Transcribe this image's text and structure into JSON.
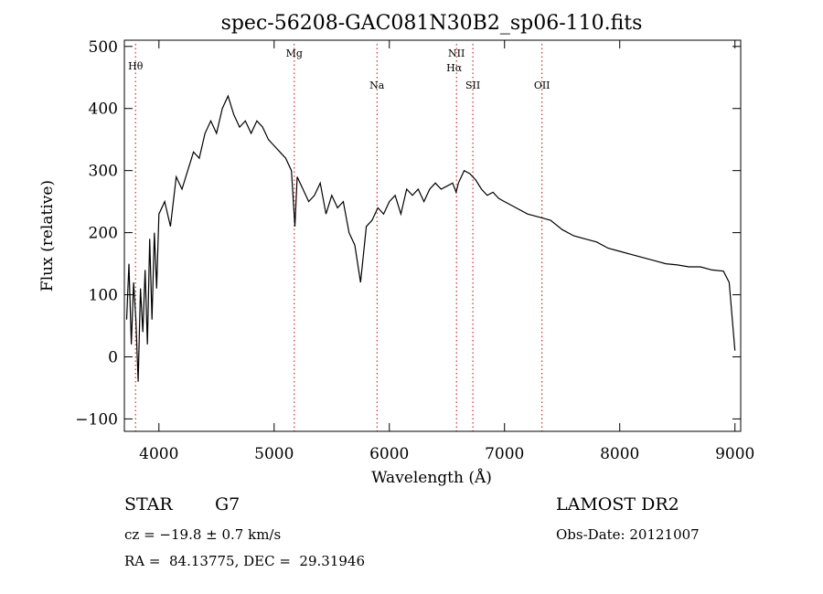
{
  "chart_data": {
    "type": "line",
    "title": "spec-56208-GAC081N30B2_sp06-110.fits",
    "xlabel": "Wavelength (Å)",
    "ylabel": "Flux (relative)",
    "xlim": [
      3700,
      9050
    ],
    "ylim": [
      -120,
      510
    ],
    "xticks": [
      4000,
      5000,
      6000,
      7000,
      8000,
      9000
    ],
    "yticks": [
      -100,
      0,
      100,
      200,
      300,
      400,
      500
    ],
    "grid": false,
    "line_color": "#000000",
    "marker_color": "#cc0000",
    "spectral_lines": [
      {
        "label": "Hθ",
        "wavelength": 3797
      },
      {
        "label": "Mg",
        "wavelength": 5175
      },
      {
        "label": "Na",
        "wavelength": 5893
      },
      {
        "label": "NII",
        "wavelength": 6583
      },
      {
        "label": "Hα",
        "wavelength": 6563
      },
      {
        "label": "SII",
        "wavelength": 6725
      },
      {
        "label": "OII",
        "wavelength": 7325
      }
    ],
    "series": [
      {
        "x": [
          3720,
          3740,
          3760,
          3780,
          3800,
          3820,
          3840,
          3860,
          3880,
          3900,
          3920,
          3940,
          3960,
          3980,
          4000,
          4050,
          4100,
          4150,
          4200,
          4250,
          4300,
          4350,
          4400,
          4450,
          4500,
          4550,
          4600,
          4650,
          4700,
          4750,
          4800,
          4850,
          4900,
          4950,
          5000,
          5050,
          5100,
          5150,
          5180,
          5200,
          5250,
          5300,
          5350,
          5400,
          5450,
          5500,
          5550,
          5600,
          5650,
          5700,
          5750,
          5800,
          5850,
          5900,
          5950,
          6000,
          6050,
          6100,
          6150,
          6200,
          6250,
          6300,
          6350,
          6400,
          6450,
          6500,
          6550,
          6580,
          6600,
          6650,
          6700,
          6750,
          6800,
          6850,
          6900,
          6950,
          7000,
          7100,
          7200,
          7300,
          7400,
          7500,
          7600,
          7700,
          7800,
          7900,
          8000,
          8100,
          8200,
          8300,
          8400,
          8500,
          8600,
          8700,
          8800,
          8900,
          8950,
          9000
        ],
        "y": [
          60,
          150,
          20,
          120,
          60,
          -40,
          110,
          40,
          140,
          20,
          190,
          60,
          200,
          110,
          230,
          250,
          210,
          290,
          270,
          300,
          330,
          320,
          360,
          380,
          360,
          400,
          420,
          390,
          370,
          380,
          360,
          380,
          370,
          350,
          340,
          330,
          320,
          300,
          210,
          290,
          270,
          250,
          260,
          280,
          230,
          260,
          240,
          250,
          200,
          180,
          120,
          210,
          220,
          240,
          230,
          250,
          260,
          230,
          270,
          260,
          270,
          250,
          270,
          280,
          270,
          275,
          280,
          265,
          280,
          300,
          295,
          285,
          270,
          260,
          265,
          255,
          250,
          240,
          230,
          225,
          220,
          205,
          195,
          190,
          185,
          175,
          170,
          165,
          160,
          155,
          150,
          148,
          145,
          145,
          140,
          138,
          120,
          10
        ]
      }
    ]
  },
  "info": {
    "object_class": "STAR",
    "subclass": "G7",
    "survey": "LAMOST DR2",
    "cz": "cz = −19.8 ± 0.7 km/s",
    "obs_date": "Obs-Date: 20121007",
    "coords": "RA =  84.13775, DEC =  29.31946"
  }
}
